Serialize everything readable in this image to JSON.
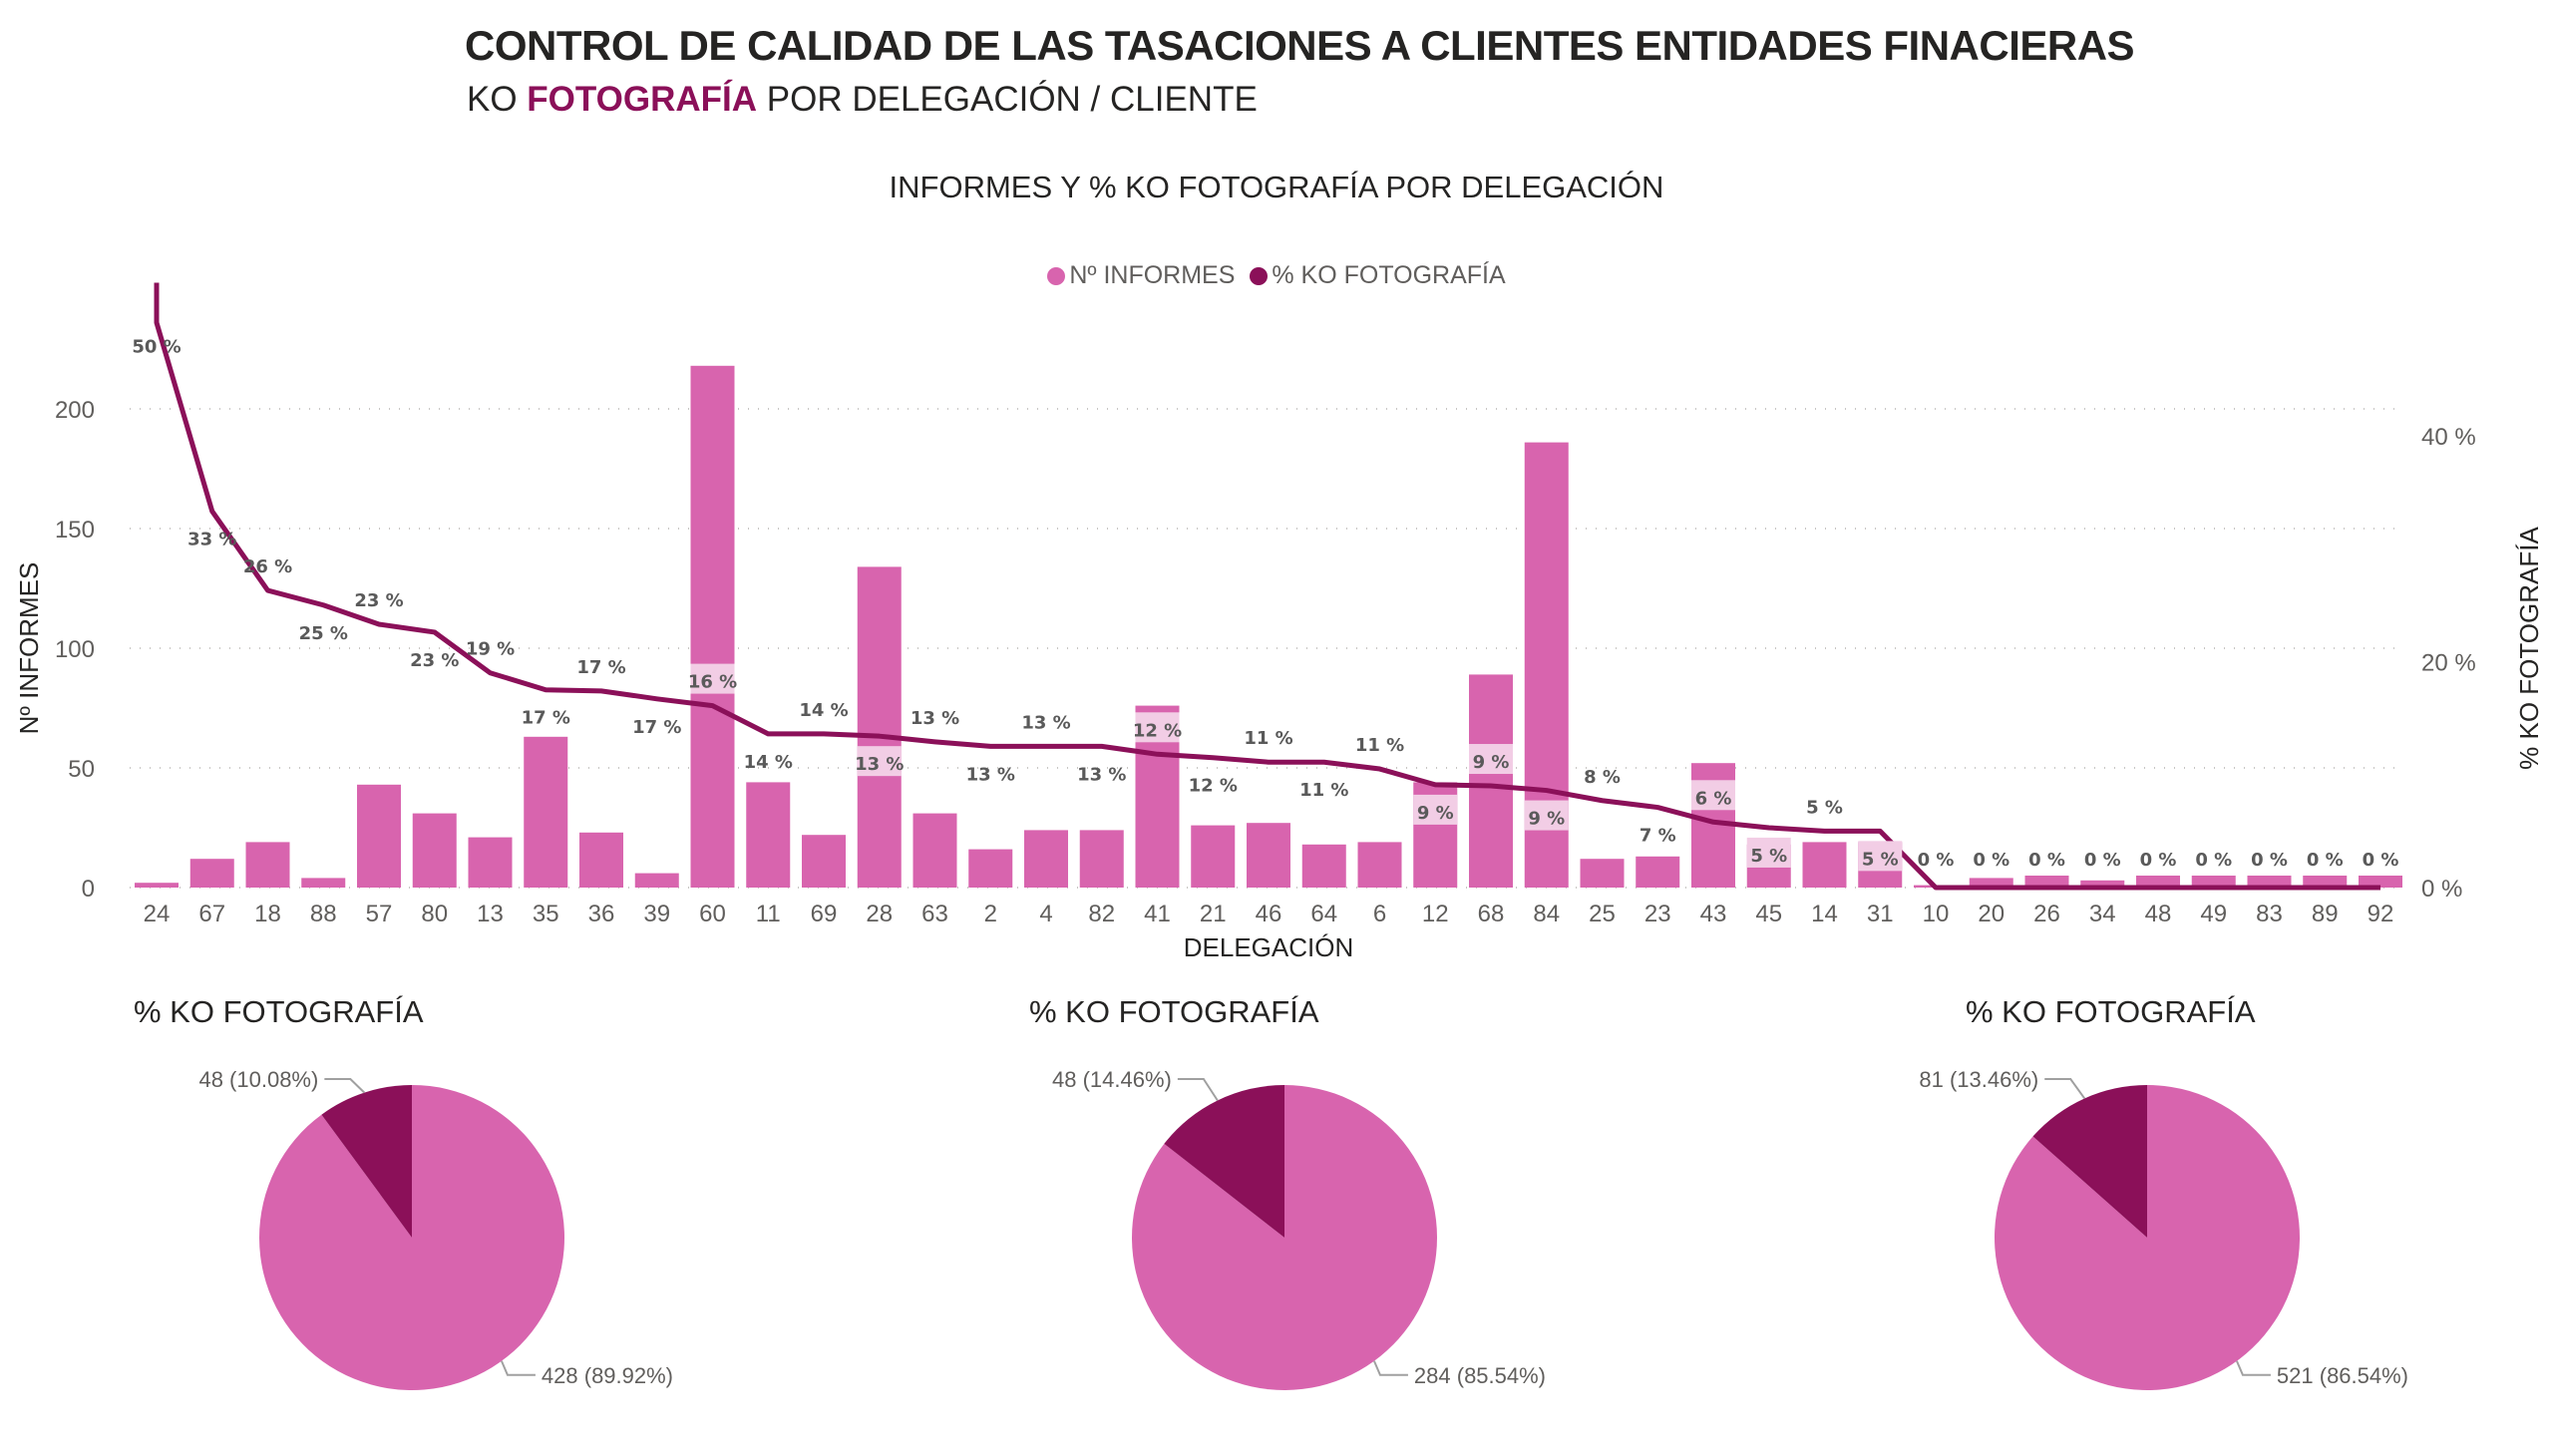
{
  "header": {
    "title": "CONTROL DE CALIDAD DE LAS TASACIONES A CLIENTES ENTIDADES FINACIERAS",
    "subtitle_prefix": "KO ",
    "subtitle_highlight": "FOTOGRAFÍA",
    "subtitle_suffix": " POR DELEGACIÓN / CLIENTE"
  },
  "colors": {
    "bar": "#D864AE",
    "line": "#8B1059",
    "label_bg": "#F2CDE5",
    "highlight_text": "#8B1059",
    "pie_ok": "#D864AE",
    "pie_ko": "#8B1059"
  },
  "chart_data": [
    {
      "type": "bar+line",
      "title": "INFORMES Y % KO FOTOGRAFÍA POR DELEGACIÓN",
      "xlabel": "DELEGACIÓN",
      "ylabel": "Nº INFORMES",
      "y2label": "% KO FOTOGRAFÍA",
      "legend": [
        "Nº INFORMES",
        "% KO FOTOGRAFÍA"
      ],
      "legend_position": "top-center",
      "ylim": [
        0,
        240
      ],
      "yticks": [
        0,
        50,
        100,
        150,
        200
      ],
      "y2lim": [
        0,
        50
      ],
      "y2ticks": [
        "0 %",
        "20 %",
        "40 %"
      ],
      "y2tick_values": [
        0,
        20,
        40
      ],
      "grid": true,
      "categories": [
        "24",
        "67",
        "18",
        "88",
        "57",
        "80",
        "13",
        "35",
        "36",
        "39",
        "60",
        "11",
        "69",
        "28",
        "63",
        "2",
        "4",
        "82",
        "41",
        "21",
        "46",
        "64",
        "6",
        "12",
        "68",
        "84",
        "25",
        "23",
        "43",
        "45",
        "14",
        "31",
        "10",
        "20",
        "26",
        "34",
        "48",
        "49",
        "83",
        "89",
        "92"
      ],
      "series": [
        {
          "name": "Nº INFORMES",
          "type": "bar",
          "values": [
            2,
            12,
            19,
            4,
            43,
            31,
            21,
            63,
            23,
            6,
            218,
            44,
            22,
            134,
            31,
            16,
            24,
            24,
            76,
            26,
            27,
            18,
            19,
            44,
            89,
            186,
            12,
            13,
            52,
            18,
            19,
            19,
            1,
            4,
            5,
            3,
            5,
            5,
            5,
            5,
            5
          ]
        },
        {
          "name": "% KO FOTOGRAFÍA",
          "type": "line",
          "values": [
            50,
            33.3,
            26.3,
            25,
            23.3,
            22.6,
            19,
            17.5,
            17.4,
            16.7,
            16.1,
            13.6,
            13.6,
            13.4,
            12.9,
            12.5,
            12.5,
            12.5,
            11.8,
            11.5,
            11.1,
            11.1,
            10.5,
            9.1,
            9.0,
            8.6,
            7.7,
            7.1,
            5.8,
            5.3,
            5.0,
            5.0,
            0,
            0,
            0,
            0,
            0,
            0,
            0,
            0,
            0
          ],
          "labels": [
            "50 %",
            "33 %",
            "26 %",
            "25 %",
            "23 %",
            "23 %",
            "19 %",
            "17 %",
            "17 %",
            "17 %",
            "16 %",
            "14 %",
            "14 %",
            "13 %",
            "13 %",
            "13 %",
            "13 %",
            "13 %",
            "12 %",
            "12 %",
            "11 %",
            "11 %",
            "11 %",
            "9 %",
            "9 %",
            "9 %",
            "8 %",
            "7 %",
            "6 %",
            "5 %",
            "5 %",
            "5 %",
            "0 %",
            "0 %",
            "0 %",
            "0 %",
            "0 %",
            "0 %",
            "0 %",
            "0 %",
            "0 %"
          ]
        }
      ]
    },
    {
      "type": "pie",
      "title": "% KO FOTOGRAFÍA",
      "slices": [
        {
          "name": "KO",
          "value": 48,
          "label": "48 (10.08%)"
        },
        {
          "name": "OK",
          "value": 428,
          "label": "428 (89.92%)"
        }
      ]
    },
    {
      "type": "pie",
      "title": "% KO FOTOGRAFÍA",
      "slices": [
        {
          "name": "KO",
          "value": 48,
          "label": "48 (14.46%)"
        },
        {
          "name": "OK",
          "value": 284,
          "label": "284 (85.54%)"
        }
      ]
    },
    {
      "type": "pie",
      "title": "% KO FOTOGRAFÍA",
      "slices": [
        {
          "name": "KO",
          "value": 81,
          "label": "81 (13.46%)"
        },
        {
          "name": "OK",
          "value": 521,
          "label": "521 (86.54%)"
        }
      ]
    }
  ]
}
